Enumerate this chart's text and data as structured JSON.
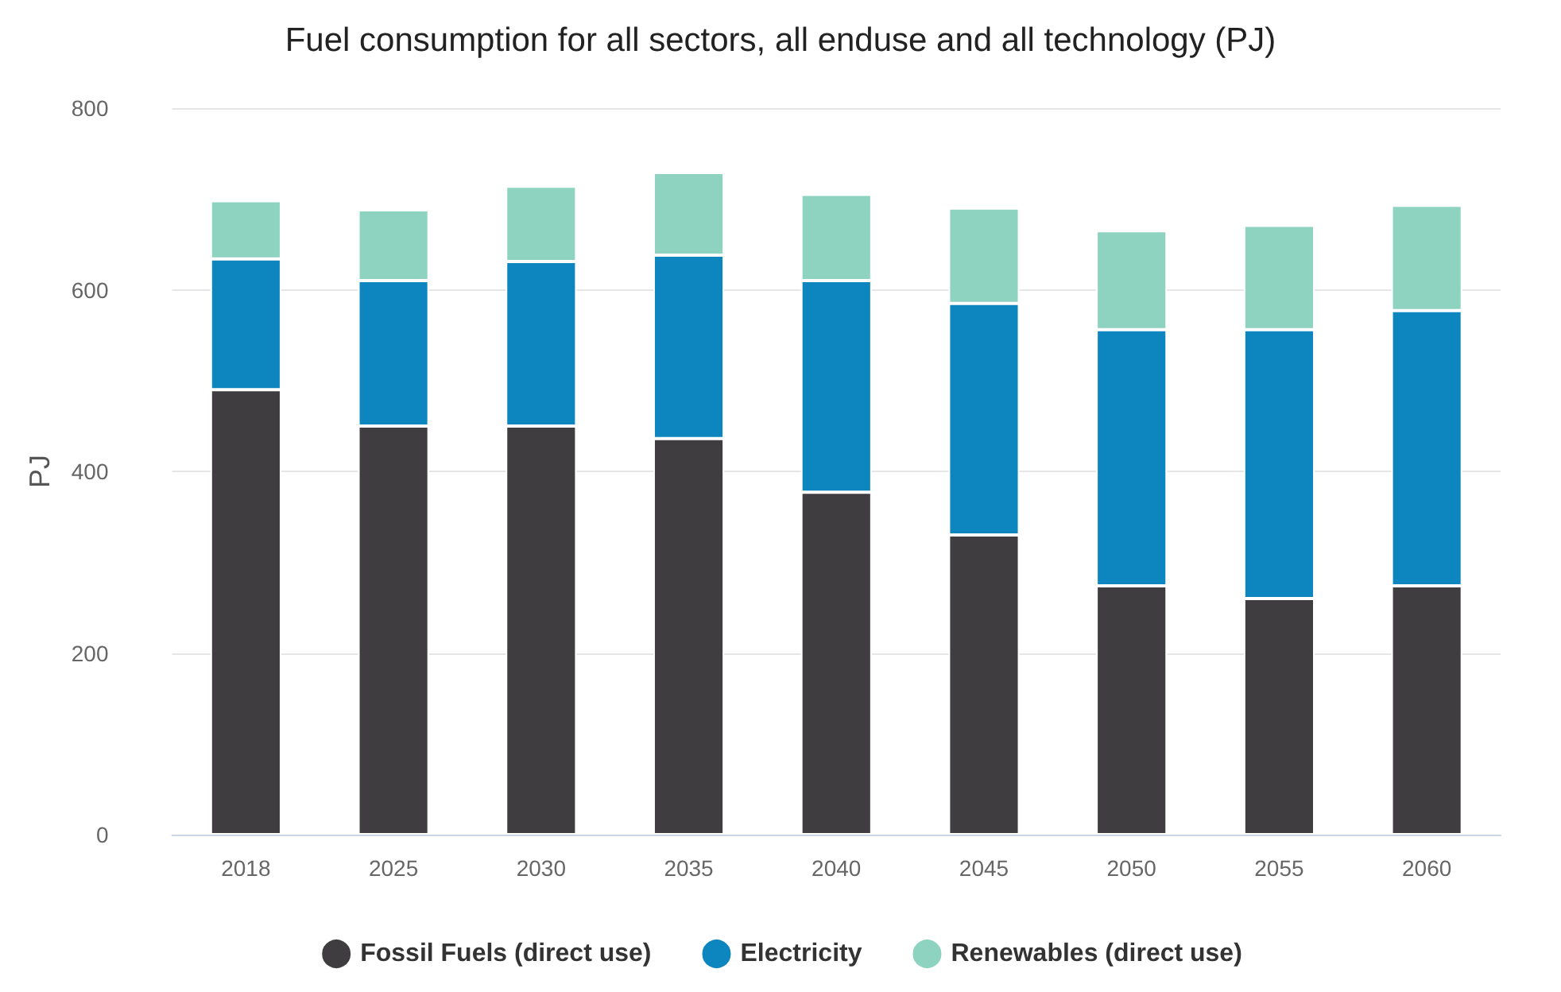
{
  "chart_data": {
    "type": "bar",
    "title": "Fuel consumption for all sectors, all enduse and all technology (PJ)",
    "ylabel": "PJ",
    "categories": [
      "2018",
      "2025",
      "2030",
      "2035",
      "2040",
      "2045",
      "2050",
      "2055",
      "2060"
    ],
    "stacked": true,
    "ylim": [
      0,
      800
    ],
    "yticks": [
      0,
      200,
      400,
      600,
      800
    ],
    "grid": "y",
    "legend": "bottom",
    "series": [
      {
        "name": "Fossil Fuels (direct use)",
        "color": "#3f3d40",
        "values": [
          490,
          450,
          450,
          436,
          377,
          330,
          274,
          260,
          274
        ]
      },
      {
        "name": "Electricity",
        "color": "#0d86c0",
        "values": [
          144,
          160,
          181,
          202,
          233,
          255,
          282,
          296,
          303
        ]
      },
      {
        "name": "Renewables (direct use)",
        "color": "#8dd3c0",
        "values": [
          64,
          78,
          83,
          91,
          95,
          105,
          109,
          115,
          116
        ]
      }
    ]
  }
}
